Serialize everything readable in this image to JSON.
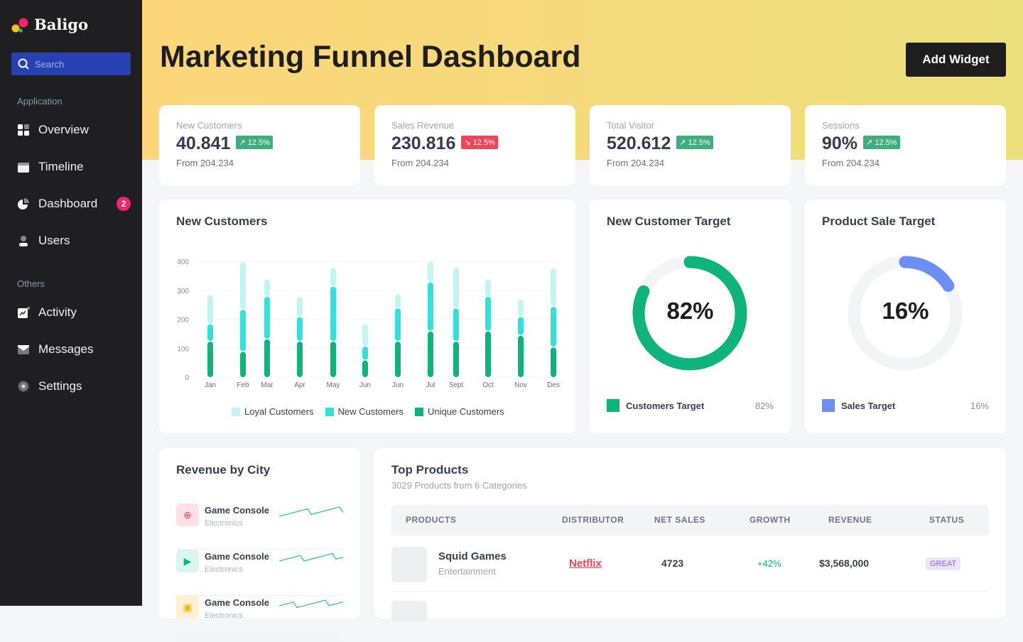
{
  "brand": {
    "name": "Baligo"
  },
  "sidebar": {
    "search_placeholder": "Search",
    "section_app": "Application",
    "section_others": "Others",
    "items": [
      {
        "label": "Overview",
        "icon": "grid-icon"
      },
      {
        "label": "Timeline",
        "icon": "calendar-icon"
      },
      {
        "label": "Dashboard",
        "icon": "pie-chart-icon",
        "badge": "2"
      },
      {
        "label": "Users",
        "icon": "user-icon"
      },
      {
        "label": "Activity",
        "icon": "activity-icon"
      },
      {
        "label": "Messages",
        "icon": "mail-icon"
      },
      {
        "label": "Settings",
        "icon": "gear-icon"
      }
    ]
  },
  "header": {
    "title": "Marketing Funnel Dashboard",
    "add_widget": "Add Widget"
  },
  "kpis": [
    {
      "label": "New Customers",
      "value": "40.841",
      "change": "12.5%",
      "trend": "up",
      "from": "From 204.234"
    },
    {
      "label": "Sales Revenue",
      "value": "230.816",
      "change": "12.5%",
      "trend": "down",
      "from": "From 204.234"
    },
    {
      "label": "Total Visitor",
      "value": "520.612",
      "change": "12.5%",
      "trend": "up",
      "from": "From 204.234"
    },
    {
      "label": "Sessions",
      "value": "90%",
      "change": "12.5%",
      "trend": "up",
      "from": "From 204.234"
    }
  ],
  "colors": {
    "up": "#3fae7e",
    "down": "#f04459",
    "loyal": "#c3f4f1",
    "new": "#33e1dc",
    "unique": "#0fb47a",
    "sales": "#6b8ff5",
    "accent_bg": "#fdd57a"
  },
  "chart_data": {
    "type": "bar",
    "stacked": true,
    "title": "New Customers",
    "ylim": [
      0,
      400
    ],
    "yticks": [
      0,
      100,
      200,
      300,
      400
    ],
    "categories": [
      "Jan",
      "Feb",
      "Mar",
      "Apr",
      "May",
      "Jun",
      "Jun",
      "Jul",
      "Sept",
      "Oct",
      "Nov",
      "Des"
    ],
    "series": [
      {
        "name": "Unique Customers",
        "values": [
          125,
          90,
          133,
          125,
          125,
          60,
          125,
          160,
          125,
          160,
          145,
          105
        ]
      },
      {
        "name": "New Customers",
        "values": [
          60,
          145,
          147,
          85,
          190,
          48,
          115,
          170,
          115,
          120,
          65,
          140
        ]
      },
      {
        "name": "Loyal Customers",
        "values": [
          100,
          165,
          60,
          70,
          65,
          77,
          48,
          70,
          140,
          60,
          60,
          133
        ]
      }
    ],
    "legend": "bottom"
  },
  "targets": [
    {
      "title": "New Customer Target",
      "value": "82%",
      "fraction": 0.82,
      "legend": "Customers Target"
    },
    {
      "title": "Product Sale Target",
      "value": "16%",
      "fraction": 0.16,
      "legend": "Sales Target"
    }
  ],
  "revenue_city": {
    "title": "Revenue by City",
    "items": [
      {
        "name": "Game Console",
        "category": "Electronics",
        "icon": "gamepad-icon"
      },
      {
        "name": "Game Console",
        "category": "Electronics",
        "icon": "play-icon"
      },
      {
        "name": "Game Console",
        "category": "Electronics",
        "icon": "box-icon"
      }
    ]
  },
  "top_products": {
    "title": "Top Products",
    "subtitle": "3029 Products from 6 Categories",
    "columns": [
      "PRODUCTS",
      "DISTRIBUTOR",
      "NET SALES",
      "GROWTH",
      "REVENUE",
      "STATUS"
    ],
    "rows": [
      {
        "name": "Squid Games",
        "category": "Entertainment",
        "distributor": "Netflix",
        "net_sales": "4723",
        "growth": "+42%",
        "revenue": "$3,568,000",
        "status": "GREAT"
      }
    ]
  }
}
